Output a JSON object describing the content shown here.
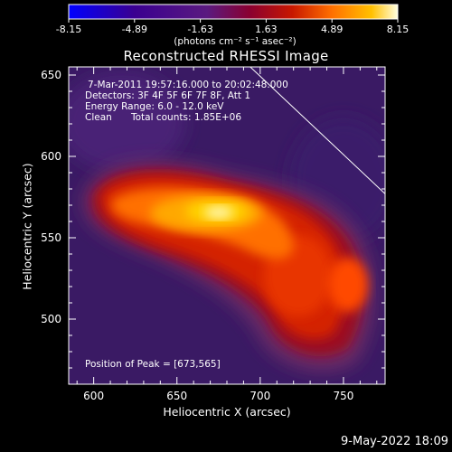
{
  "chart_data": {
    "type": "heatmap",
    "title": "Reconstructed RHESSI Image",
    "xlabel": "Heliocentric X (arcsec)",
    "ylabel": "Heliocentric Y (arcsec)",
    "xlim": [
      585,
      775
    ],
    "ylim": [
      460,
      655
    ],
    "x_ticks": [
      600,
      650,
      700,
      750
    ],
    "y_ticks": [
      500,
      550,
      600,
      650
    ],
    "colorbar": {
      "range": [
        -8.15,
        8.15
      ],
      "tick_labels": [
        "-8.15",
        "-4.89",
        "-1.63",
        "1.63",
        "4.89",
        "8.15"
      ],
      "tick_values": [
        -8.15,
        -4.89,
        -1.63,
        1.63,
        4.89,
        8.15
      ],
      "unit_text": "(photons cm⁻² s⁻¹ asec⁻²)",
      "colors": [
        "#0000ff",
        "#3a0090",
        "#5a1a80",
        "#8a0030",
        "#c81800",
        "#ff7000",
        "#ffc000",
        "#ffffe0"
      ]
    },
    "annotations": {
      "time": "7-Mar-2011 19:57:16.000 to 20:02:48.000",
      "detectors": "Detectors: 3F 4F 5F 6F 7F 8F, Att 1",
      "energy": "Energy Range: 6.0 - 12.0 keV",
      "clean_label": "Clean",
      "counts": "Total counts: 1.85E+06",
      "peak": "Position of Peak = [673,565]"
    },
    "peak": {
      "x": 673,
      "y": 565
    },
    "limb_line": [
      [
        694,
        655
      ],
      [
        775,
        577
      ]
    ]
  },
  "footer_date": "9-May-2022 18:09"
}
